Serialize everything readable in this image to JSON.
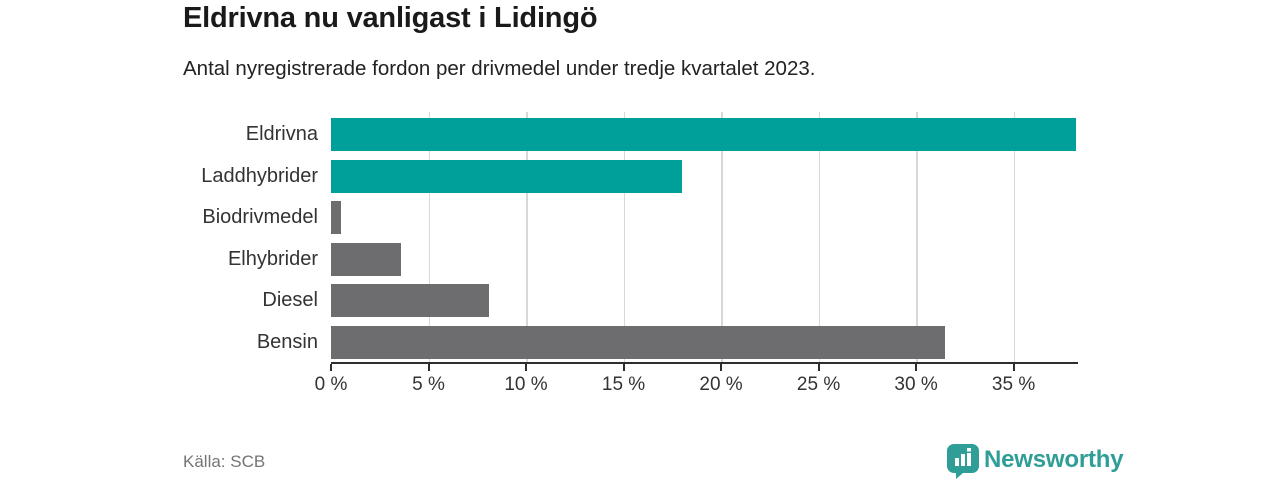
{
  "header": {
    "title": "Eldrivna nu vanligast i Lidingö",
    "subtitle": "Antal nyregistrerade fordon per drivmedel under tredje kvartalet 2023."
  },
  "colors": {
    "teal": "#00a09a",
    "gray": "#6d6d70",
    "brand_teal": "#2f9e96",
    "gridline": "#d8d8d8",
    "axis": "#2e2e2e"
  },
  "chart_data": {
    "type": "bar",
    "orientation": "horizontal",
    "title": "Eldrivna nu vanligast i Lidingö",
    "subtitle": "Antal nyregistrerade fordon per drivmedel under tredje kvartalet 2023.",
    "categories": [
      "Eldrivna",
      "Laddhybrider",
      "Biodrivmedel",
      "Elhybrider",
      "Diesel",
      "Bensin"
    ],
    "values": [
      38.2,
      18.0,
      0.5,
      3.6,
      8.1,
      31.5
    ],
    "unit": "%",
    "bar_colors": [
      "teal",
      "teal",
      "gray",
      "gray",
      "gray",
      "gray"
    ],
    "xlim": [
      0,
      38.2
    ],
    "ticks": [
      0,
      5,
      10,
      15,
      20,
      25,
      30,
      35
    ],
    "tick_labels": [
      "0 %",
      "5 %",
      "10 %",
      "15 %",
      "20 %",
      "25 %",
      "30 %",
      "35 %"
    ],
    "grid": "vertical",
    "legend": "none"
  },
  "footer": {
    "source": "Källa: SCB",
    "brand": "Newsworthy"
  }
}
